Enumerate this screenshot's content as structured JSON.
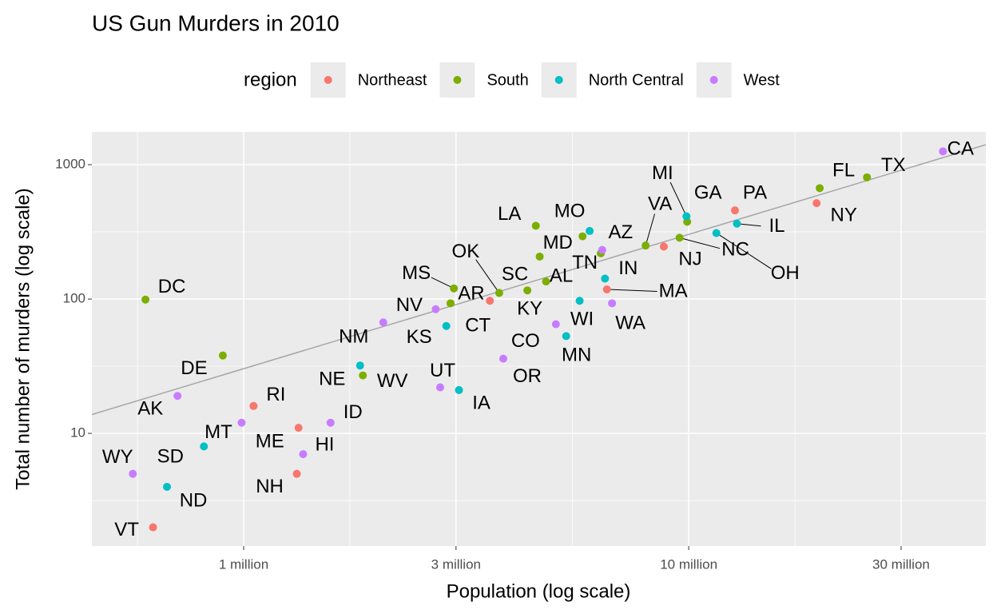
{
  "chart_data": {
    "type": "scatter",
    "title": "US Gun Murders in 2010",
    "xlabel": "Population (log scale)",
    "ylabel": "Total number of murders (log scale)",
    "legend_title": "region",
    "legend_position": "top",
    "log_x": true,
    "log_y": true,
    "grid": true,
    "xlim": [
      456000,
      46500000
    ],
    "ylim": [
      1.45,
      1754
    ],
    "xticks": [
      {
        "value": 1000000,
        "label": "1 million"
      },
      {
        "value": 3000000,
        "label": "3 million"
      },
      {
        "value": 10000000,
        "label": "10 million"
      },
      {
        "value": 30000000,
        "label": "30 million"
      }
    ],
    "yticks": [
      10,
      100,
      1000
    ],
    "reference_line": {
      "rate": 3.03e-05,
      "color": "#a6a6a6"
    },
    "series": [
      {
        "name": "Northeast",
        "color": "#F8766D",
        "labels": [
          "CT",
          "ME",
          "MA",
          "NH",
          "NJ",
          "NY",
          "PA",
          "RI",
          "VT"
        ],
        "x": [
          3574097,
          1328361,
          6547629,
          1316470,
          8791894,
          19378102,
          12702379,
          1052567,
          625741
        ],
        "values": [
          97,
          11,
          118,
          5,
          246,
          517,
          457,
          16,
          2
        ]
      },
      {
        "name": "South",
        "color": "#7CAE00",
        "labels": [
          "AL",
          "AR",
          "DE",
          "DC",
          "FL",
          "GA",
          "KY",
          "LA",
          "MD",
          "MS",
          "NC",
          "OK",
          "SC",
          "TN",
          "TX",
          "VA",
          "WV"
        ],
        "x": [
          4779736,
          2915918,
          897934,
          601723,
          19687653,
          9920000,
          4339367,
          4533372,
          5773552,
          2967297,
          9535483,
          3751351,
          4625364,
          6346105,
          25145561,
          8001024,
          1852994
        ],
        "values": [
          135,
          93,
          38,
          99,
          669,
          376,
          116,
          351,
          293,
          120,
          286,
          111,
          207,
          219,
          805,
          250,
          27
        ]
      },
      {
        "name": "North Central",
        "color": "#00BFC4",
        "labels": [
          "IL",
          "IN",
          "IA",
          "KS",
          "MI",
          "MN",
          "MO",
          "NE",
          "ND",
          "OH",
          "SD",
          "WI"
        ],
        "x": [
          12830632,
          6483802,
          3046355,
          2853118,
          9883640,
          5303925,
          5988927,
          1826341,
          672591,
          11536504,
          814180,
          5686986
        ],
        "values": [
          364,
          142,
          21,
          63,
          413,
          53,
          321,
          32,
          4,
          310,
          8,
          97
        ]
      },
      {
        "name": "West",
        "color": "#C77CFF",
        "labels": [
          "AK",
          "AZ",
          "CA",
          "CO",
          "HI",
          "ID",
          "MT",
          "NV",
          "NM",
          "OR",
          "UT",
          "WA",
          "WY"
        ],
        "x": [
          710231,
          6392017,
          37253956,
          5029196,
          1360301,
          1567582,
          989415,
          2700551,
          2059179,
          3831074,
          2763885,
          6724540,
          563626
        ],
        "values": [
          19,
          232,
          1257,
          65,
          7,
          12,
          12,
          84,
          67,
          36,
          22,
          93,
          5
        ]
      }
    ]
  }
}
